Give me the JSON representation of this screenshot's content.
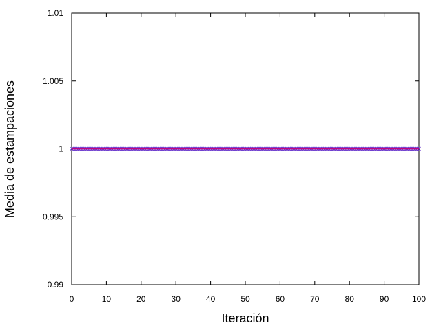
{
  "chart_data": {
    "type": "line",
    "title": "",
    "xlabel": "Iteración",
    "ylabel": "Media de estampaciones",
    "xlim": [
      0,
      100
    ],
    "ylim": [
      0.99,
      1.01
    ],
    "x_ticks": [
      0,
      10,
      20,
      30,
      40,
      50,
      60,
      70,
      80,
      90,
      100
    ],
    "x_tick_labels": [
      "0",
      "10",
      "20",
      "30",
      "40",
      "50",
      "60",
      "70",
      "80",
      "90",
      "100"
    ],
    "y_ticks": [
      0.99,
      0.995,
      1,
      1.005,
      1.01
    ],
    "y_tick_labels": [
      "0.99",
      "0.995",
      "1",
      "1.005",
      "1.01"
    ],
    "grid": false,
    "legend": "none",
    "series": [
      {
        "color": "#cc0077",
        "marker_color": "#6633cc",
        "marker": "x",
        "x_start": 0,
        "x_end": 100,
        "x_step": 0.5,
        "value": 1
      }
    ]
  }
}
